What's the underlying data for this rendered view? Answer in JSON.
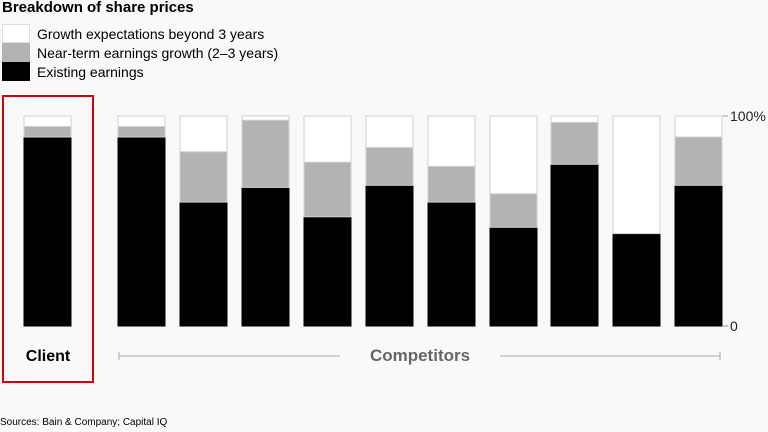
{
  "chart_data": {
    "type": "bar",
    "stacked": true,
    "title": "Breakdown of share prices",
    "ylim": [
      0,
      100
    ],
    "y_tick_labels": [
      "0",
      "100%"
    ],
    "y_axis_position": "right",
    "grid": false,
    "legend_position": "top-left",
    "groups": {
      "client": "Client",
      "competitors": "Competitors"
    },
    "categories": [
      "Client",
      "",
      "",
      "",
      "",
      "",
      "",
      "",
      "",
      "",
      ""
    ],
    "series": [
      {
        "name": "Existing earnings",
        "color": "#000000",
        "values": [
          90,
          90,
          59,
          66,
          52,
          67,
          59,
          47,
          77,
          44,
          67
        ]
      },
      {
        "name": "Near-term earnings growth (2–3 years)",
        "color": "#b3b3b3",
        "values": [
          5,
          5,
          24,
          32,
          26,
          18,
          17,
          16,
          20,
          0,
          23
        ]
      },
      {
        "name": "Growth expectations beyond 3 years",
        "color": "#ffffff",
        "values": [
          5,
          5,
          17,
          2,
          22,
          15,
          24,
          37,
          3,
          56,
          10
        ]
      }
    ],
    "highlight_color": "#d0000a",
    "source": "Sources: Bain & Company; Capital IQ"
  }
}
